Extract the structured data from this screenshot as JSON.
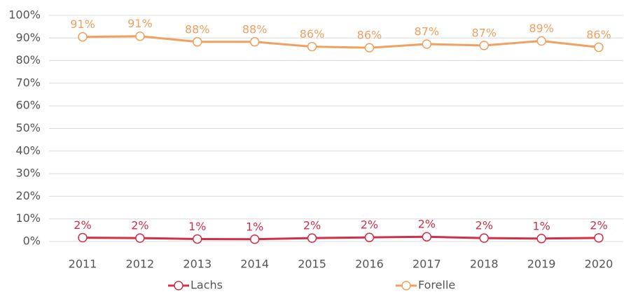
{
  "chart_data": {
    "type": "line",
    "categories": [
      "2011",
      "2012",
      "2013",
      "2014",
      "2015",
      "2016",
      "2017",
      "2018",
      "2019",
      "2020"
    ],
    "series": [
      {
        "name": "Lachs",
        "color": "#d0304a",
        "values": [
          1.7,
          1.5,
          1.1,
          1.0,
          1.5,
          1.8,
          2.1,
          1.5,
          1.3,
          1.6
        ],
        "value_labels": [
          "2%",
          "2%",
          "1%",
          "1%",
          "2%",
          "2%",
          "2%",
          "2%",
          "1%",
          "2%"
        ]
      },
      {
        "name": "Forelle",
        "color": "#f0a060",
        "values": [
          90.5,
          90.8,
          88.3,
          88.3,
          86.2,
          85.7,
          87.3,
          86.7,
          88.7,
          85.9
        ],
        "value_labels": [
          "91%",
          "91%",
          "88%",
          "88%",
          "86%",
          "86%",
          "87%",
          "87%",
          "89%",
          "86%"
        ]
      }
    ],
    "ylim": [
      0,
      100
    ],
    "yticks": [
      {
        "value": 0,
        "label": "0%"
      },
      {
        "value": 10,
        "label": "10%"
      },
      {
        "value": 20,
        "label": "20%"
      },
      {
        "value": 30,
        "label": "30%"
      },
      {
        "value": 40,
        "label": "40%"
      },
      {
        "value": 50,
        "label": "50%"
      },
      {
        "value": 60,
        "label": "60%"
      },
      {
        "value": 70,
        "label": "70%"
      },
      {
        "value": 80,
        "label": "80%"
      },
      {
        "value": 90,
        "label": "90%"
      },
      {
        "value": 100,
        "label": "100%"
      }
    ],
    "grid": true,
    "legend": "bottom"
  }
}
